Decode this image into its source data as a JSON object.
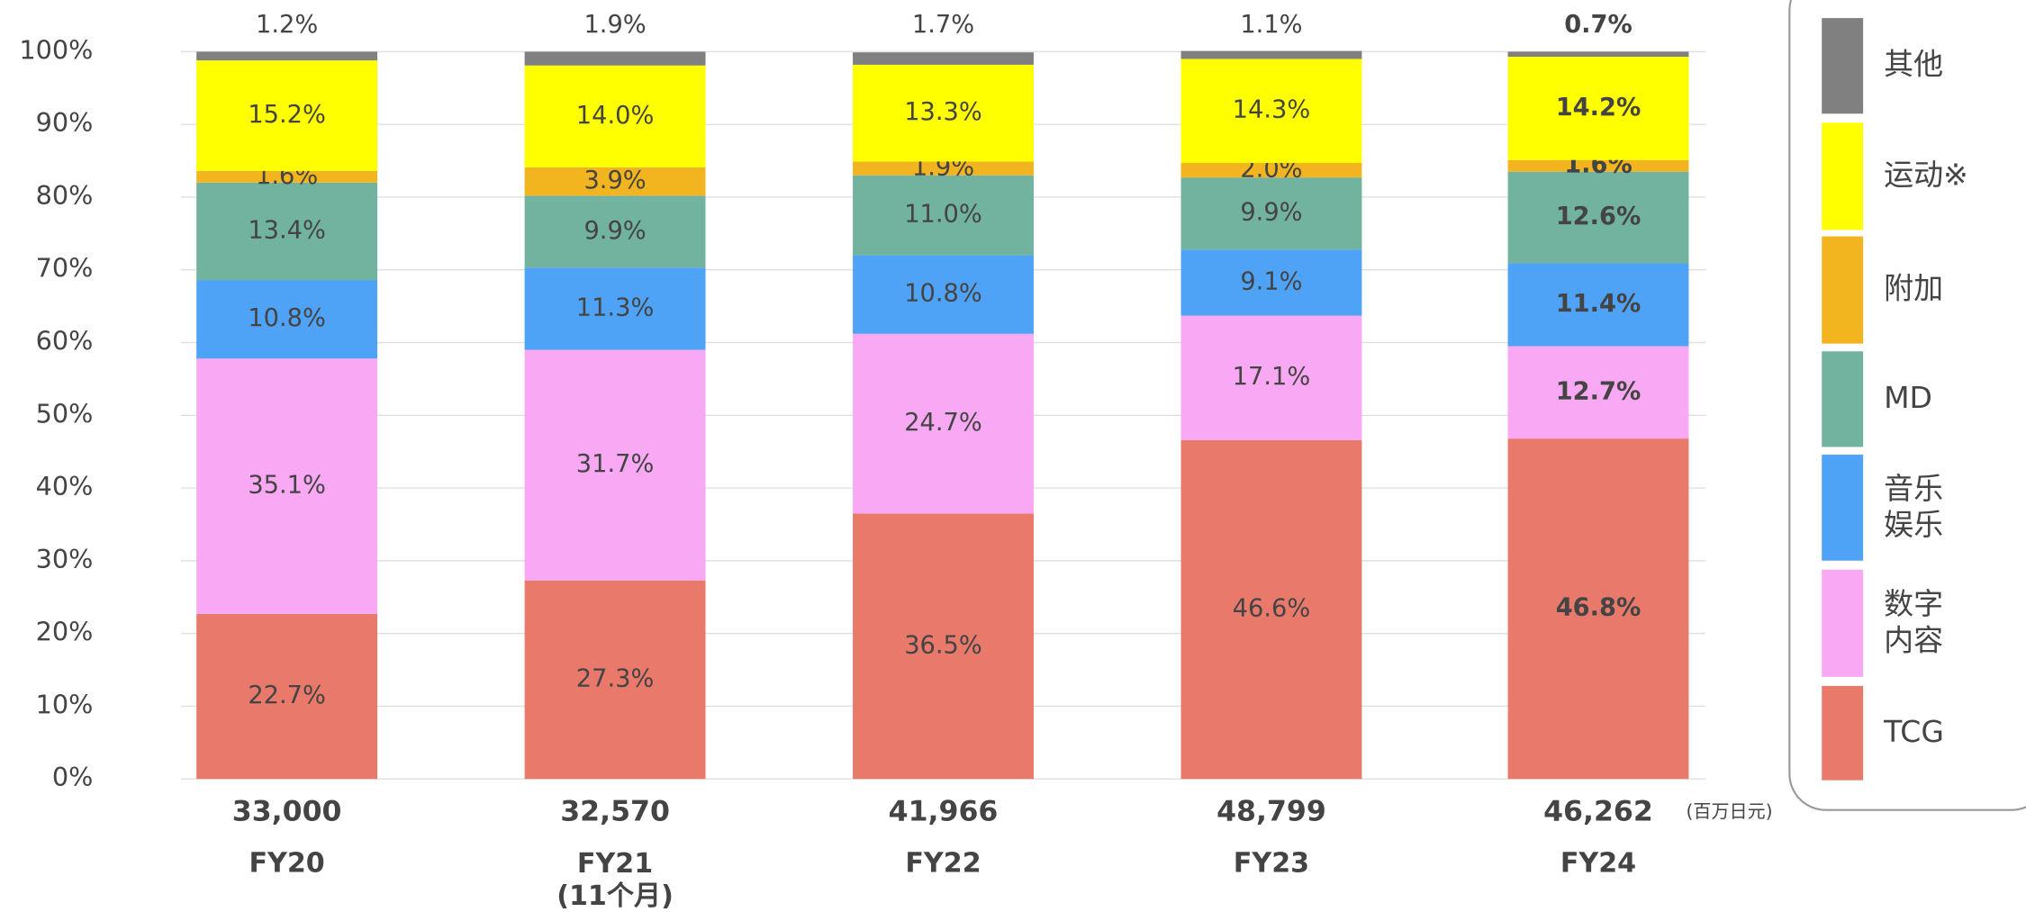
{
  "chart_data": {
    "type": "stacked_bar_100",
    "categories": [
      "FY20",
      "FY21\n(11个月)",
      "FY22",
      "FY23",
      "FY24"
    ],
    "totals": [
      33000,
      32570,
      41966,
      48799,
      46262
    ],
    "total_labels": [
      "33,000",
      "32,570",
      "41,966",
      "48,799",
      "46,262"
    ],
    "total_unit": "(百万日元)",
    "ylim": [
      0,
      100
    ],
    "yticks": [
      {
        "value": 0,
        "label": "0%"
      },
      {
        "value": 10,
        "label": "10%"
      },
      {
        "value": 20,
        "label": "20%"
      },
      {
        "value": 30,
        "label": "30%"
      },
      {
        "value": 40,
        "label": "40%"
      },
      {
        "value": 50,
        "label": "50%"
      },
      {
        "value": 60,
        "label": "60%"
      },
      {
        "value": 70,
        "label": "70%"
      },
      {
        "value": 80,
        "label": "80%"
      },
      {
        "value": 90,
        "label": "90%"
      },
      {
        "value": 100,
        "label": "100%"
      }
    ],
    "grid": true,
    "legend": "right",
    "series": [
      {
        "name": "TCG",
        "color": "#e8796b",
        "values": [
          22.7,
          27.3,
          36.5,
          46.6,
          46.8
        ],
        "value_labels": [
          "22.7%",
          "27.3%",
          "36.5%",
          "46.6%",
          "46.8%"
        ]
      },
      {
        "name": "数字\n内容",
        "color": "#f9a8f3",
        "values": [
          35.1,
          31.7,
          24.7,
          17.1,
          12.7
        ],
        "value_labels": [
          "35.1%",
          "31.7%",
          "24.7%",
          "17.1%",
          "12.7%"
        ]
      },
      {
        "name": "音乐\n娱乐",
        "color": "#4fa3f7",
        "values": [
          10.8,
          11.3,
          10.8,
          9.1,
          11.4
        ],
        "value_labels": [
          "10.8%",
          "11.3%",
          "10.8%",
          "9.1%",
          "11.4%"
        ]
      },
      {
        "name": "MD",
        "color": "#72b3a0",
        "values": [
          13.4,
          9.9,
          11.0,
          9.9,
          12.6
        ],
        "value_labels": [
          "13.4%",
          "9.9%",
          "11.0%",
          "9.9%",
          "12.6%"
        ]
      },
      {
        "name": "附加",
        "color": "#f2b51f",
        "values": [
          1.6,
          3.9,
          1.9,
          2.0,
          1.6
        ],
        "value_labels": [
          "1.6%",
          "3.9%",
          "1.9%",
          "2.0%",
          "1.6%"
        ]
      },
      {
        "name": "运动※",
        "color": "#ffff00",
        "values": [
          15.2,
          14.0,
          13.3,
          14.3,
          14.2
        ],
        "value_labels": [
          "15.2%",
          "14.0%",
          "13.3%",
          "14.3%",
          "14.2%"
        ]
      },
      {
        "name": "其他",
        "color": "#808080",
        "values": [
          1.2,
          1.9,
          1.7,
          1.1,
          0.7
        ],
        "value_labels": [
          "1.2%",
          "1.9%",
          "1.7%",
          "1.1%",
          "0.7%"
        ]
      }
    ]
  }
}
